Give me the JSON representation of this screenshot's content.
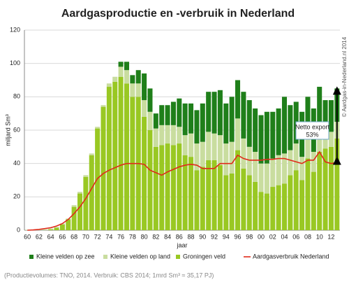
{
  "chart_data": {
    "type": "bar",
    "stacked": true,
    "title": "Aardgasproductie en -verbruik in Nederland",
    "y_label": "miljard Sm³",
    "x_label": "jaar",
    "categories": [
      "60",
      null,
      "62",
      null,
      "64",
      null,
      "66",
      null,
      "68",
      null,
      "70",
      null,
      "72",
      null,
      "74",
      null,
      "76",
      null,
      "78",
      null,
      "80",
      null,
      "82",
      null,
      "84",
      null,
      "86",
      null,
      "88",
      null,
      "90",
      null,
      "92",
      null,
      "94",
      null,
      "96",
      null,
      "98",
      null,
      "00",
      null,
      "02",
      null,
      "04",
      null,
      "06",
      null,
      "08",
      null,
      "10",
      null,
      "12",
      null
    ],
    "series": [
      {
        "name": "Kleine velden op zee",
        "color": "#1f7f1a",
        "values": [
          0,
          0,
          0,
          0,
          0,
          0,
          0,
          0,
          0,
          0,
          0,
          0,
          0,
          0,
          0,
          0,
          3,
          5,
          5,
          8,
          16,
          14,
          9,
          12,
          12,
          14,
          17,
          19,
          18,
          20,
          23,
          24,
          25,
          27,
          24,
          27,
          23,
          28,
          28,
          26,
          29,
          31,
          28,
          28,
          34,
          27,
          25,
          27,
          25,
          26,
          27,
          20,
          19,
          20
        ]
      },
      {
        "name": "Kleine velden op land",
        "color": "#c9dd9f",
        "values": [
          0.3,
          0.4,
          0.5,
          0.6,
          0.5,
          0.5,
          0.5,
          0.5,
          1,
          1,
          1,
          1,
          1,
          1,
          2,
          3,
          6,
          8,
          8,
          8,
          10,
          11,
          11,
          12,
          11,
          12,
          10,
          12,
          14,
          16,
          15,
          17,
          16,
          18,
          19,
          19,
          19,
          18,
          17,
          18,
          17,
          18,
          17,
          18,
          18,
          15,
          16,
          14,
          12,
          12,
          12,
          9,
          9,
          10
        ]
      },
      {
        "name": "Groningen veld",
        "color": "#99c823",
        "values": [
          0,
          0,
          0,
          0,
          0.5,
          1.5,
          3.5,
          6.5,
          14,
          22,
          32,
          45,
          61,
          74,
          86,
          89,
          92,
          88,
          80,
          80,
          68,
          60,
          50,
          51,
          52,
          51,
          52,
          45,
          44,
          36,
          38,
          42,
          42,
          39,
          33,
          34,
          48,
          37,
          33,
          29,
          23,
          22,
          26,
          27,
          28,
          33,
          36,
          30,
          43,
          35,
          47,
          49,
          50,
          55
        ]
      },
      {
        "name": "Aardgasverbruik Nederland",
        "type": "line",
        "color": "#e02a1a",
        "values": [
          0,
          0.2,
          0.5,
          1,
          1.5,
          2.5,
          4,
          6.5,
          10,
          14,
          19,
          25,
          31,
          34,
          36,
          37.5,
          39,
          40,
          40,
          40,
          39.5,
          36,
          34.5,
          33,
          35,
          36.5,
          38,
          39,
          39.5,
          39,
          37,
          37,
          37,
          40,
          40,
          40,
          45,
          43,
          42,
          42,
          42,
          42.5,
          42.5,
          43,
          43,
          42,
          41,
          40,
          42,
          42,
          47,
          41,
          40,
          40.5
        ]
      }
    ],
    "ylim": [
      0,
      120
    ],
    "yticks": [
      0,
      20,
      40,
      60,
      80,
      100,
      120
    ],
    "grid": true,
    "annotation": {
      "title": "Netto export",
      "value": "53%"
    },
    "copyright": "© Aardgas-in-Nederland.nl  2014",
    "footnote": "(Productievolumes: TNO, 2014. Verbruik: CBS 2014; 1mrd Sm³ ≈ 35,17 PJ)"
  }
}
